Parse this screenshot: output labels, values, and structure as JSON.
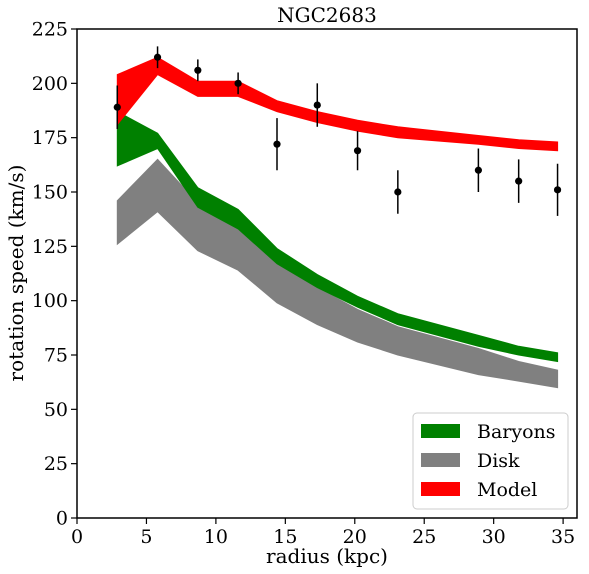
{
  "chart_data": {
    "type": "area",
    "title": "NGC2683",
    "xlabel": "radius (kpc)",
    "ylabel": "rotation speed (km/s)",
    "xlim": [
      0,
      36
    ],
    "ylim": [
      0,
      225
    ],
    "xticks": [
      0,
      5,
      10,
      15,
      20,
      25,
      30,
      35
    ],
    "yticks": [
      0,
      25,
      50,
      75,
      100,
      125,
      150,
      175,
      200,
      225
    ],
    "grid": false,
    "legend_position": "lower-right",
    "x": [
      2.9,
      5.8,
      8.7,
      11.6,
      14.4,
      17.3,
      20.2,
      23.1,
      28.9,
      31.8,
      34.6
    ],
    "bands": [
      {
        "name": "Disk",
        "color": "#808080",
        "upper": [
          146,
          165,
          145,
          135,
          117,
          106,
          96,
          88,
          78,
          72,
          68
        ],
        "lower": [
          126,
          141,
          123,
          114,
          99,
          89,
          81,
          75,
          66,
          63,
          60
        ]
      },
      {
        "name": "Baryons",
        "color": "#008000",
        "upper": [
          187,
          177,
          152,
          142,
          124,
          112,
          102,
          94,
          84,
          79,
          76
        ],
        "lower": [
          162,
          170,
          143,
          133,
          117,
          106,
          97,
          89,
          79,
          75,
          72
        ]
      },
      {
        "name": "Model",
        "color": "#ff0000",
        "upper": [
          204,
          212,
          201,
          201,
          192,
          187,
          183,
          180,
          176,
          174,
          173
        ],
        "lower": [
          181,
          204,
          194,
          194,
          187,
          182,
          178,
          175,
          172,
          170,
          169
        ]
      }
    ],
    "observations": {
      "x": [
        2.9,
        5.8,
        8.7,
        11.6,
        14.4,
        17.3,
        20.2,
        23.1,
        28.9,
        31.8,
        34.6
      ],
      "y": [
        189,
        212,
        206,
        200,
        172,
        190,
        169,
        150,
        160,
        155,
        151
      ],
      "err": [
        10,
        5,
        5,
        5,
        12,
        10,
        9,
        10,
        10,
        10,
        12
      ]
    },
    "legend": [
      {
        "label": "Baryons",
        "color": "#008000"
      },
      {
        "label": "Disk",
        "color": "#808080"
      },
      {
        "label": "Model",
        "color": "#ff0000"
      }
    ]
  }
}
